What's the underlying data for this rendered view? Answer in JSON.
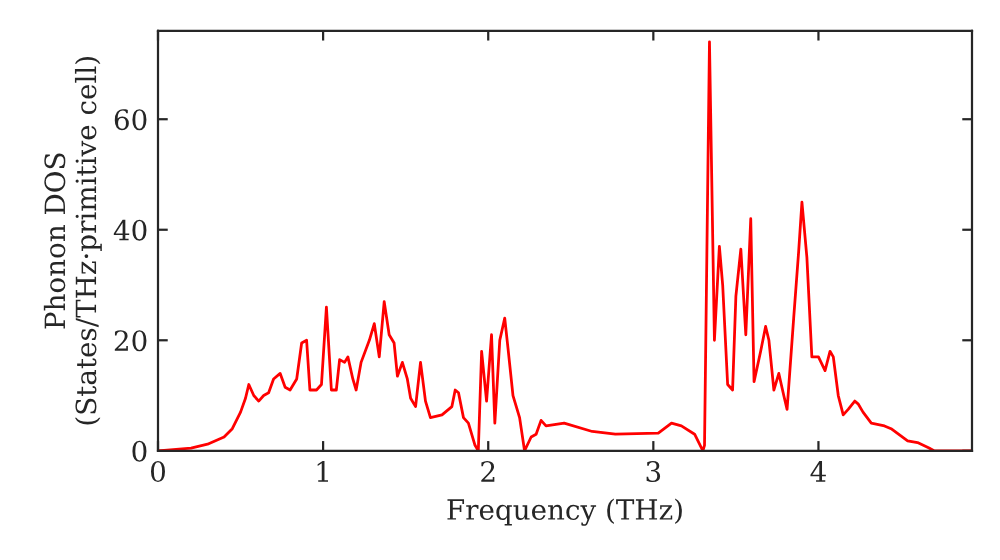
{
  "chart_data": {
    "type": "line",
    "xlabel": "Frequency (THz)",
    "ylabel": "Phonon DOS\n(States/THz·primitive cell)",
    "xlim": [
      0,
      4.93
    ],
    "ylim": [
      0,
      76
    ],
    "xticks": [
      0,
      1,
      2,
      3,
      4
    ],
    "yticks": [
      0,
      20,
      40,
      60
    ],
    "grid": false,
    "marker": "none",
    "line_style": "solid",
    "series": [
      {
        "color": "#ff0000",
        "x": [
          0,
          0.2,
          0.3,
          0.4,
          0.45,
          0.5,
          0.53,
          0.55,
          0.58,
          0.61,
          0.64,
          0.67,
          0.7,
          0.74,
          0.77,
          0.8,
          0.84,
          0.87,
          0.9,
          0.92,
          0.96,
          0.99,
          1.02,
          1.05,
          1.08,
          1.1,
          1.13,
          1.15,
          1.18,
          1.2,
          1.23,
          1.28,
          1.31,
          1.34,
          1.37,
          1.4,
          1.43,
          1.45,
          1.48,
          1.51,
          1.53,
          1.56,
          1.59,
          1.62,
          1.65,
          1.72,
          1.78,
          1.8,
          1.82,
          1.85,
          1.88,
          1.92,
          1.94,
          1.96,
          1.99,
          2.02,
          2.04,
          2.07,
          2.1,
          2.12,
          2.15,
          2.19,
          2.22,
          2.26,
          2.29,
          2.32,
          2.35,
          2.46,
          2.63,
          2.77,
          3.03,
          3.11,
          3.17,
          3.25,
          3.3,
          3.31,
          3.34,
          3.37,
          3.4,
          3.42,
          3.45,
          3.48,
          3.5,
          3.53,
          3.56,
          3.59,
          3.61,
          3.65,
          3.68,
          3.7,
          3.73,
          3.76,
          3.79,
          3.81,
          3.85,
          3.88,
          3.9,
          3.93,
          3.96,
          4.0,
          4.04,
          4.07,
          4.09,
          4.12,
          4.15,
          4.18,
          4.22,
          4.24,
          4.27,
          4.32,
          4.4,
          4.44,
          4.54,
          4.6,
          4.67,
          4.7,
          4.93
        ],
        "values": [
          0,
          0.5,
          1.2,
          2.5,
          4,
          7,
          9.5,
          12,
          10,
          9,
          10,
          10.5,
          13,
          14,
          11.5,
          11,
          13,
          19.5,
          20,
          11,
          11,
          12,
          26,
          11,
          11,
          16.5,
          16,
          17,
          13,
          11,
          16,
          20,
          23,
          17,
          27,
          21,
          19.5,
          13.5,
          16,
          13,
          9.5,
          8,
          16,
          9,
          6,
          6.5,
          8,
          11,
          10.5,
          6,
          5,
          1,
          0,
          18,
          9,
          21,
          5,
          20,
          24,
          18.5,
          10,
          6,
          0,
          2.5,
          3,
          5.5,
          4.5,
          5,
          3.5,
          3,
          3.2,
          5,
          4.5,
          3,
          0,
          1,
          74,
          20,
          37,
          30,
          12,
          11,
          28,
          36.5,
          21,
          42,
          12.5,
          18,
          22.5,
          20,
          11,
          14,
          10,
          7.5,
          24,
          36,
          45,
          35,
          17,
          17,
          14.5,
          18,
          17,
          10,
          6.5,
          7.5,
          9,
          8.5,
          7,
          5,
          4.5,
          4,
          1.8,
          1.5,
          0.5,
          0,
          0
        ]
      }
    ]
  }
}
